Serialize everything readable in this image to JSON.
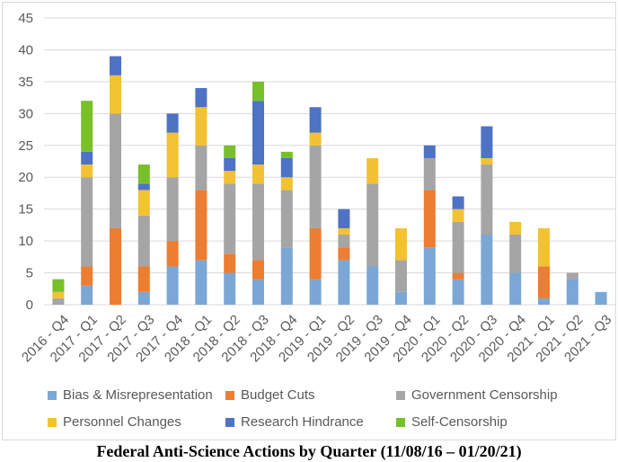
{
  "caption": "Federal Anti-Science Actions by Quarter (11/08/16 – 01/20/21)",
  "chart_data": {
    "type": "bar",
    "stacked": true,
    "title": "",
    "xlabel": "",
    "ylabel": "",
    "ylim": [
      0,
      45
    ],
    "yticks": [
      0,
      5,
      10,
      15,
      20,
      25,
      30,
      35,
      40,
      45
    ],
    "grid": true,
    "legend_position": "bottom",
    "categories": [
      "2016 - Q4",
      "2017 - Q1",
      "2017 - Q2",
      "2017 - Q3",
      "2017 - Q4",
      "2018 - Q1",
      "2018 - Q2",
      "2018 - Q3",
      "2018 - Q4",
      "2019 - Q1",
      "2019 - Q2",
      "2019 - Q3",
      "2019 - Q4",
      "2020 - Q1",
      "2020 - Q2",
      "2020 - Q3",
      "2020 - Q4",
      "2021 - Q1",
      "2021 - Q2",
      "2021 - Q3"
    ],
    "series": [
      {
        "name": "Bias & Misrepresentation",
        "color": "#7aa7d6",
        "values": [
          0,
          3,
          0,
          2,
          6,
          7,
          5,
          4,
          9,
          4,
          7,
          6,
          2,
          9,
          4,
          11,
          5,
          1,
          4,
          2
        ]
      },
      {
        "name": "Budget Cuts",
        "color": "#ed7d31",
        "values": [
          0,
          3,
          12,
          4,
          4,
          11,
          3,
          3,
          0,
          8,
          2,
          0,
          0,
          9,
          1,
          0,
          0,
          5,
          0,
          0
        ]
      },
      {
        "name": "Government Censorship",
        "color": "#a5a5a5",
        "values": [
          1,
          14,
          18,
          8,
          10,
          7,
          11,
          12,
          9,
          13,
          2,
          13,
          5,
          5,
          8,
          11,
          6,
          0,
          1,
          0
        ]
      },
      {
        "name": "Personnel Changes",
        "color": "#f2c232",
        "values": [
          1,
          2,
          6,
          4,
          7,
          6,
          2,
          3,
          2,
          2,
          1,
          4,
          5,
          0,
          2,
          1,
          2,
          6,
          0,
          0
        ]
      },
      {
        "name": "Research Hindrance",
        "color": "#4e72c4",
        "values": [
          0,
          2,
          3,
          1,
          3,
          3,
          2,
          10,
          3,
          4,
          3,
          0,
          0,
          2,
          2,
          5,
          0,
          0,
          0,
          0
        ]
      },
      {
        "name": "Self-Censorship",
        "color": "#78c02a",
        "values": [
          2,
          8,
          0,
          3,
          0,
          0,
          2,
          3,
          1,
          0,
          0,
          0,
          0,
          0,
          0,
          0,
          0,
          0,
          0,
          0
        ]
      }
    ]
  }
}
